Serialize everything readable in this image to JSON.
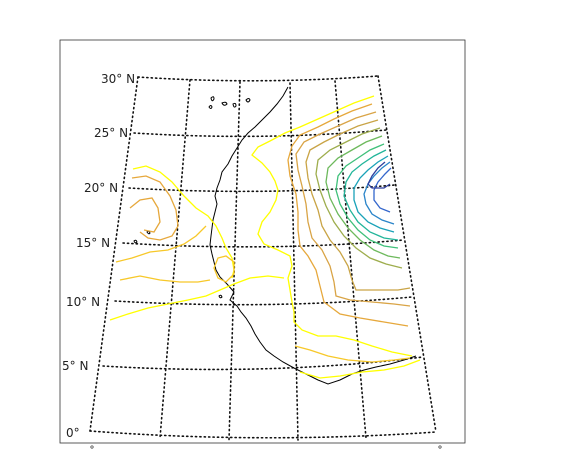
{
  "map": {
    "lat_labels": [
      "30° N",
      "25° N",
      "20° N",
      "15° N",
      "10° N",
      "5° N",
      "0°"
    ],
    "colors": {
      "frame": "#333333",
      "grid": "#111111",
      "coast": "#000000",
      "contour_ramp": [
        "#ffff00",
        "#f7c829",
        "#e6a83c",
        "#c9a446",
        "#9ead4d",
        "#6db95c",
        "#3fc07a",
        "#22b59a",
        "#1aa2b8",
        "#2a84c9",
        "#3366cc",
        "#2e3f9e"
      ]
    },
    "layers": [
      "lat-lon-graticule",
      "coastline",
      "contour-lines"
    ]
  }
}
